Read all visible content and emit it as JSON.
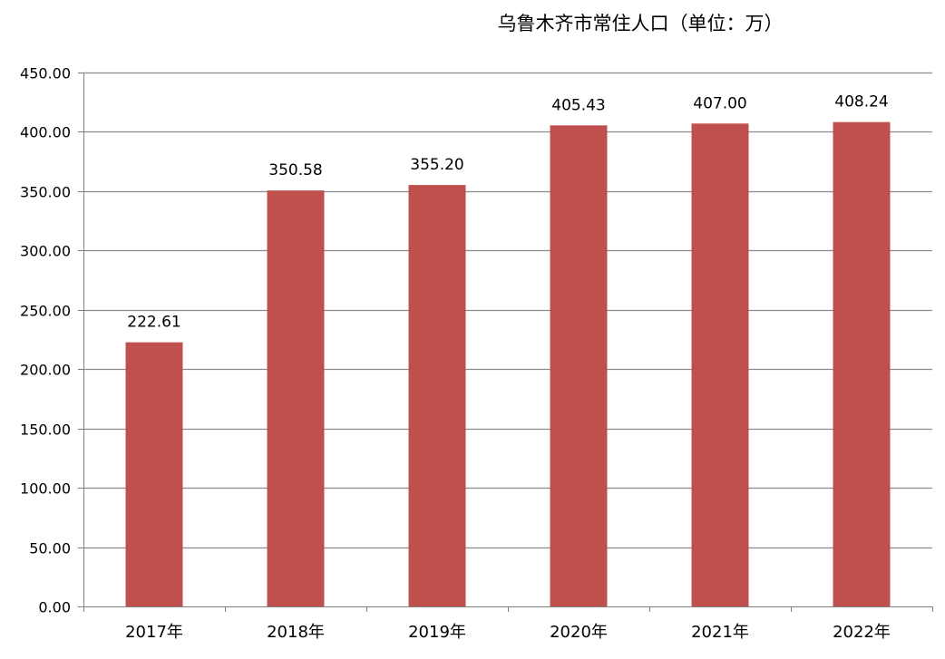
{
  "chart_data": {
    "type": "bar",
    "title": "乌鲁木齐市常住人口（单位：万）",
    "categories": [
      "2017年",
      "2018年",
      "2019年",
      "2020年",
      "2021年",
      "2022年"
    ],
    "values": [
      222.61,
      350.58,
      355.2,
      405.43,
      407.0,
      408.24
    ],
    "data_labels": [
      "222.61",
      "350.58",
      "355.20",
      "405.43",
      "407.00",
      "408.24"
    ],
    "ylim": [
      0,
      450
    ],
    "yticks": [
      "0.00",
      "50.00",
      "100.00",
      "150.00",
      "200.00",
      "250.00",
      "300.00",
      "350.00",
      "400.00",
      "450.00"
    ],
    "xlabel": "",
    "ylabel": "",
    "grid": true,
    "legend": "none",
    "bar_color": "#C0504D",
    "grid_color": "#8C8C8C",
    "axis_color": "#7F7F7F"
  }
}
